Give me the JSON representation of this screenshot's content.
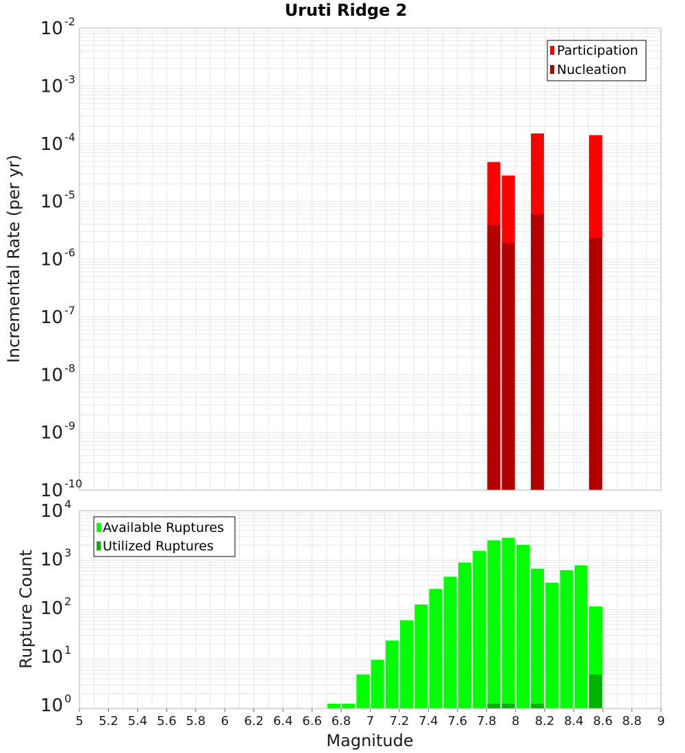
{
  "chart_data": [
    {
      "type": "bar",
      "title": "Uruti Ridge 2",
      "ylabel": "Incremental Rate (per yr)",
      "yscale": "log",
      "ylim_exp": [
        -10,
        -2
      ],
      "xlim": [
        5,
        9
      ],
      "legend": {
        "position": "top-right",
        "entries": [
          "Participation",
          "Nucleation"
        ]
      },
      "series": [
        {
          "name": "Participation",
          "color": "#ff0000",
          "x": [
            7.85,
            7.95,
            8.15,
            8.55
          ],
          "values": [
            4.8e-05,
            2.8e-05,
            0.00015,
            0.00014
          ]
        },
        {
          "name": "Nucleation",
          "color": "#b30000",
          "x": [
            7.85,
            7.95,
            8.15,
            8.55
          ],
          "values": [
            3.9e-06,
            1.9e-06,
            6e-06,
            2.3e-06
          ]
        }
      ]
    },
    {
      "type": "bar",
      "ylabel": "Rupture Count",
      "xlabel": "Magnitude",
      "yscale": "log",
      "ylim_exp": [
        0,
        4
      ],
      "xlim": [
        5,
        9
      ],
      "xticks": [
        "5",
        "5.2",
        "5.4",
        "5.6",
        "5.8",
        "6",
        "6.2",
        "6.4",
        "6.6",
        "6.8",
        "7",
        "7.2",
        "7.4",
        "7.6",
        "7.8",
        "8",
        "8.2",
        "8.4",
        "8.6",
        "8.8",
        "9"
      ],
      "legend": {
        "position": "top-left",
        "entries": [
          "Available Ruptures",
          "Utilized Ruptures"
        ]
      },
      "series": [
        {
          "name": "Available Ruptures",
          "color": "#00ff00",
          "x": [
            6.75,
            6.85,
            6.95,
            7.05,
            7.15,
            7.25,
            7.35,
            7.45,
            7.55,
            7.65,
            7.75,
            7.85,
            7.95,
            8.05,
            8.15,
            8.25,
            8.35,
            8.45,
            8.55
          ],
          "values": [
            1,
            1,
            4,
            8,
            20,
            52,
            110,
            230,
            410,
            800,
            1400,
            2300,
            2600,
            1850,
            600,
            310,
            560,
            700,
            100
          ]
        },
        {
          "name": "Utilized Ruptures",
          "color": "#00b300",
          "x": [
            7.85,
            7.95,
            8.15,
            8.55
          ],
          "values": [
            1,
            1,
            1,
            4
          ]
        }
      ]
    }
  ]
}
